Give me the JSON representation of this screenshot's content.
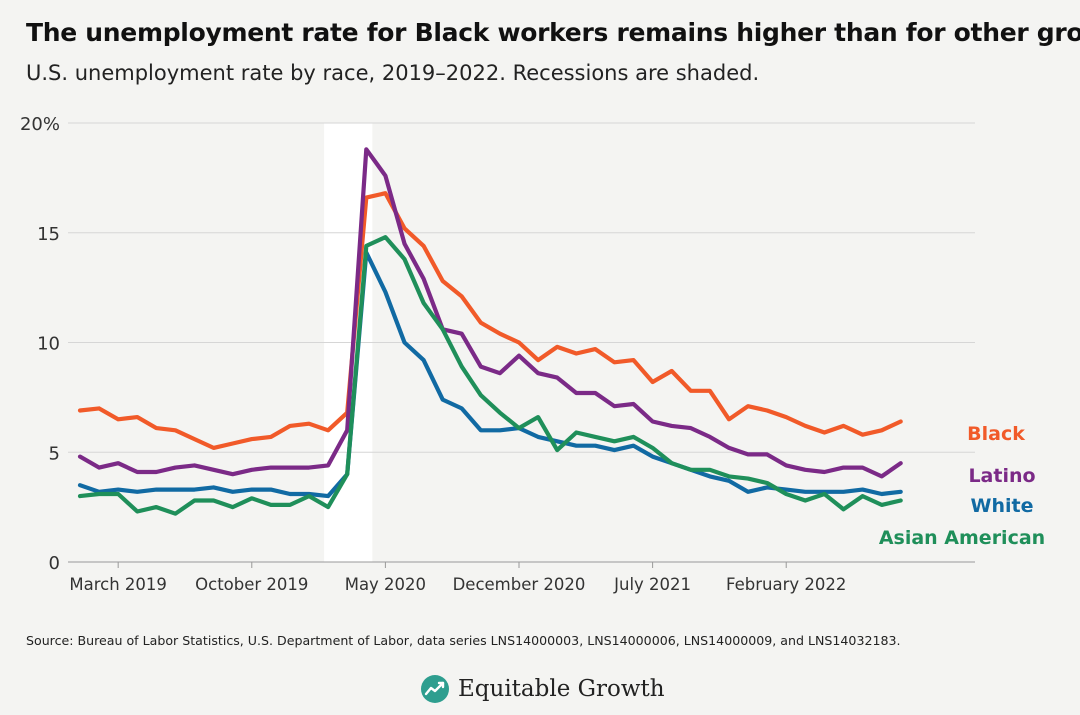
{
  "title": "The unemployment rate for Black workers remains higher than for other groups",
  "subtitle": "U.S. unemployment rate by race, 2019–2022. Recessions are shaded.",
  "source": "Source: Bureau of Labor Statistics, U.S. Department of Labor, data series LNS14000003, LNS14000006, LNS14000009, and LNS14032183.",
  "brand": "Equitable Growth",
  "chart_data": {
    "type": "line",
    "x_start": "2019-01",
    "x_end": "2022-11",
    "ylim": [
      0,
      20
    ],
    "yticks": [
      0,
      5,
      10,
      15,
      20
    ],
    "ytick_labels": [
      "0",
      "5",
      "10",
      "15",
      "20%"
    ],
    "xticks": [
      {
        "x": "2019-03",
        "label": "March 2019"
      },
      {
        "x": "2019-10",
        "label": "October 2019"
      },
      {
        "x": "2020-05",
        "label": "May 2020"
      },
      {
        "x": "2020-12",
        "label": "December 2020"
      },
      {
        "x": "2021-07",
        "label": "July 2021"
      },
      {
        "x": "2022-02",
        "label": "February 2022"
      }
    ],
    "recession": {
      "start": "2020-02",
      "end": "2020-04"
    },
    "grid": true,
    "legend": "direct labels at right end of lines",
    "series": [
      {
        "name": "Black",
        "color": "#f15a29",
        "values": [
          6.9,
          7.0,
          6.5,
          6.6,
          6.1,
          6.0,
          5.6,
          5.2,
          5.4,
          5.6,
          5.7,
          6.2,
          6.3,
          6.0,
          6.8,
          16.6,
          16.8,
          15.2,
          14.4,
          12.8,
          12.1,
          10.9,
          10.4,
          10.0,
          9.2,
          9.8,
          9.5,
          9.7,
          9.1,
          9.2,
          8.2,
          8.7,
          7.8,
          7.8,
          6.5,
          7.1,
          6.9,
          6.6,
          6.2,
          5.9,
          6.2,
          5.8,
          6.0,
          6.4
        ]
      },
      {
        "name": "Latino",
        "color": "#7b2a87",
        "values": [
          4.8,
          4.3,
          4.5,
          4.1,
          4.1,
          4.3,
          4.4,
          4.2,
          4.0,
          4.2,
          4.3,
          4.3,
          4.3,
          4.4,
          6.0,
          18.8,
          17.6,
          14.5,
          12.9,
          10.6,
          10.4,
          8.9,
          8.6,
          9.4,
          8.6,
          8.4,
          7.7,
          7.7,
          7.1,
          7.2,
          6.4,
          6.2,
          6.1,
          5.7,
          5.2,
          4.9,
          4.9,
          4.4,
          4.2,
          4.1,
          4.3,
          4.3,
          3.9,
          4.5
        ]
      },
      {
        "name": "White",
        "color": "#116aa3",
        "values": [
          3.5,
          3.2,
          3.3,
          3.2,
          3.3,
          3.3,
          3.3,
          3.4,
          3.2,
          3.3,
          3.3,
          3.1,
          3.1,
          3.0,
          4.0,
          14.1,
          12.3,
          10.0,
          9.2,
          7.4,
          7.0,
          6.0,
          6.0,
          6.1,
          5.7,
          5.5,
          5.3,
          5.3,
          5.1,
          5.3,
          4.8,
          4.5,
          4.2,
          3.9,
          3.7,
          3.2,
          3.4,
          3.3,
          3.2,
          3.2,
          3.2,
          3.3,
          3.1,
          3.2
        ]
      },
      {
        "name": "Asian American",
        "color": "#1f8f5a",
        "values": [
          3.0,
          3.1,
          3.1,
          2.3,
          2.5,
          2.2,
          2.8,
          2.8,
          2.5,
          2.9,
          2.6,
          2.6,
          3.0,
          2.5,
          4.0,
          14.4,
          14.8,
          13.8,
          11.8,
          10.6,
          8.9,
          7.6,
          6.8,
          6.1,
          6.6,
          5.1,
          5.9,
          5.7,
          5.5,
          5.7,
          5.2,
          4.5,
          4.2,
          4.2,
          3.9,
          3.8,
          3.6,
          3.1,
          2.8,
          3.1,
          2.4,
          3.0,
          2.6,
          2.8
        ]
      }
    ]
  }
}
